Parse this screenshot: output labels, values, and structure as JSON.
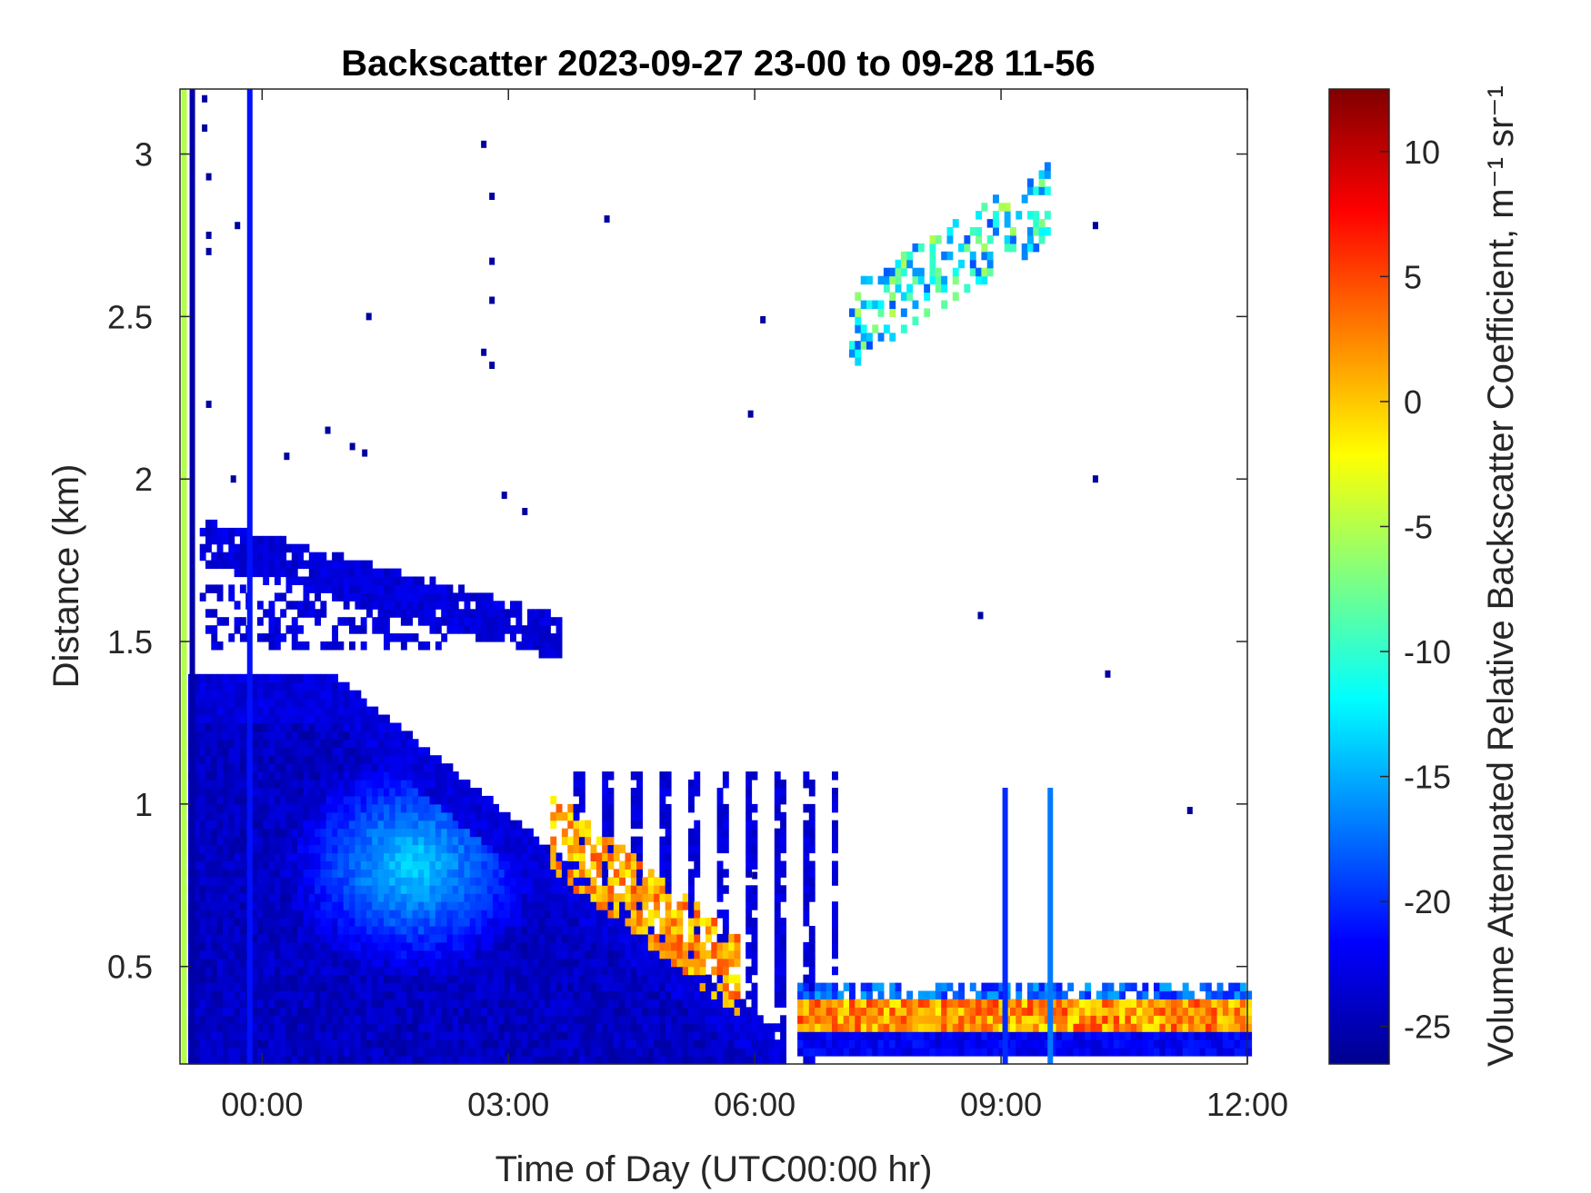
{
  "chart_data": {
    "type": "heatmap",
    "title": "Backscatter 2023-09-27 23-00 to 09-28 11-56",
    "xlabel": "Time of Day (UTC00:00 hr)",
    "ylabel": "Distance (km)",
    "colorbar_label": "Volume Attenuated Relative Backscatter Coefficient, m⁻¹ sr⁻¹",
    "colormap": "jet",
    "x_range_hours": [
      -1,
      12
    ],
    "y_range_km": [
      0.2,
      3.2
    ],
    "c_range": [
      -26.5,
      12.5
    ],
    "grid": false,
    "x_ticks": [
      {
        "value": 0,
        "label": "00:00"
      },
      {
        "value": 3,
        "label": "03:00"
      },
      {
        "value": 6,
        "label": "06:00"
      },
      {
        "value": 9,
        "label": "09:00"
      },
      {
        "value": 12,
        "label": "12:00"
      }
    ],
    "y_ticks": [
      {
        "value": 0.5,
        "label": "0.5"
      },
      {
        "value": 1.0,
        "label": "1"
      },
      {
        "value": 1.5,
        "label": "1.5"
      },
      {
        "value": 2.0,
        "label": "2"
      },
      {
        "value": 2.5,
        "label": "2.5"
      },
      {
        "value": 3.0,
        "label": "3"
      }
    ],
    "c_ticks": [
      {
        "value": 10,
        "label": "10"
      },
      {
        "value": 5,
        "label": "5"
      },
      {
        "value": 0,
        "label": "0"
      },
      {
        "value": -5,
        "label": "-5"
      },
      {
        "value": -10,
        "label": "-10"
      },
      {
        "value": -15,
        "label": "-15"
      },
      {
        "value": -20,
        "label": "-20"
      },
      {
        "value": -25,
        "label": "-25"
      }
    ],
    "features": [
      {
        "name": "boundary layer aerosol",
        "t_start": -0.9,
        "t_end": 6.2,
        "z_bottom": 0.2,
        "z_top_start": 1.38,
        "z_top_end": 0.3,
        "value": -19
      },
      {
        "name": "aerosol maximum",
        "t": 1.8,
        "z": 0.8,
        "value": -13
      },
      {
        "name": "upper aerosol layer",
        "t_start": -0.8,
        "t_end": 3.6,
        "z_start": 1.8,
        "z_end": 1.5,
        "value": -23
      },
      {
        "name": "low cloud / fog layer",
        "t_start": 6.5,
        "t_end": 12.0,
        "z": 0.35,
        "value": 2
      },
      {
        "name": "cloud tops",
        "t_start": 3.5,
        "t_end": 5.8,
        "z_start": 0.9,
        "z_end": 0.45,
        "value": 5
      },
      {
        "name": "mid-level cloud",
        "t_start": 7.1,
        "t_end": 9.6,
        "z_start": 2.45,
        "z_end": 2.85,
        "value": -12
      }
    ],
    "vertical_streaks": [
      {
        "t": -0.95,
        "z_top": 3.2,
        "value": -5
      },
      {
        "t": -0.85,
        "z_top": 3.2,
        "value": -25
      },
      {
        "t": -0.15,
        "z_top": 3.2,
        "value": -21
      },
      {
        "t": 9.05,
        "z_top": 1.05,
        "value": -20
      },
      {
        "t": 9.6,
        "z_top": 1.05,
        "value": -17
      }
    ],
    "scattered_points": [
      {
        "t": 2.7,
        "z": 3.03
      },
      {
        "t": 2.8,
        "z": 2.87
      },
      {
        "t": 2.8,
        "z": 2.67
      },
      {
        "t": 2.8,
        "z": 2.55
      },
      {
        "t": 2.7,
        "z": 2.39
      },
      {
        "t": 2.8,
        "z": 2.35
      },
      {
        "t": 1.3,
        "z": 2.5
      },
      {
        "t": 0.3,
        "z": 2.07
      },
      {
        "t": 0.8,
        "z": 2.15
      },
      {
        "t": 1.1,
        "z": 2.1
      },
      {
        "t": 1.25,
        "z": 2.08
      },
      {
        "t": 2.95,
        "z": 1.95
      },
      {
        "t": 3.2,
        "z": 1.9
      },
      {
        "t": 4.2,
        "z": 2.8
      },
      {
        "t": 5.95,
        "z": 2.2
      },
      {
        "t": 6.1,
        "z": 2.49
      },
      {
        "t": 8.75,
        "z": 1.58
      },
      {
        "t": 10.15,
        "z": 2.0
      },
      {
        "t": 10.3,
        "z": 1.4
      },
      {
        "t": 11.3,
        "z": 0.98
      },
      {
        "t": 10.15,
        "z": 2.78
      },
      {
        "t": -0.7,
        "z": 3.17
      },
      {
        "t": -0.7,
        "z": 3.08
      },
      {
        "t": -0.65,
        "z": 2.93
      },
      {
        "t": -0.65,
        "z": 2.75
      },
      {
        "t": -0.65,
        "z": 2.7
      },
      {
        "t": -0.65,
        "z": 2.23
      },
      {
        "t": -0.35,
        "z": 2.0
      },
      {
        "t": -0.3,
        "z": 2.78
      },
      {
        "t": 6.0,
        "z": 0.78
      }
    ]
  }
}
